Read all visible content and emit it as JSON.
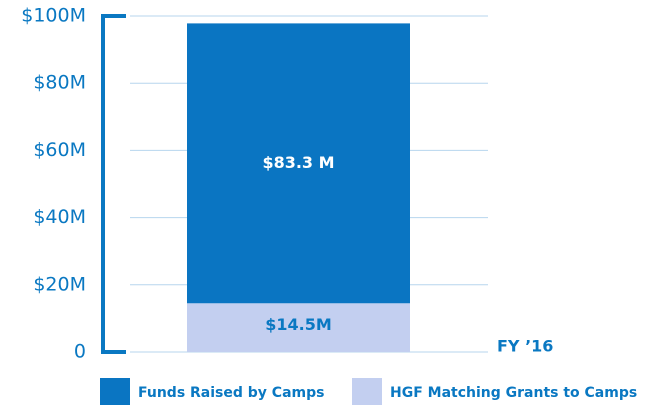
{
  "chart_data": {
    "type": "stacked_bar",
    "categories": [
      "FY ’16"
    ],
    "series": [
      {
        "name": "Funds Raised by Camps",
        "color": "#0a75c2",
        "values": [
          83.3
        ],
        "value_labels": [
          "$83.3 M"
        ]
      },
      {
        "name": "HGF Matching Grants to Camps",
        "color": "#c3cff0",
        "values": [
          14.5
        ],
        "value_labels": [
          "$14.5M"
        ]
      }
    ],
    "ylim": [
      0,
      100
    ],
    "yticks": [
      0,
      {
        "value": 20,
        "label": "$20M"
      },
      {
        "value": 40,
        "label": "$40M"
      },
      {
        "value": 60,
        "label": "$60M"
      },
      {
        "value": 80,
        "label": "$80M"
      },
      {
        "value": 100,
        "label": "$100M"
      }
    ],
    "grid": true
  }
}
